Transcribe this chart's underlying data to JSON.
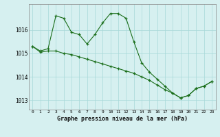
{
  "line1_x": [
    0,
    1,
    2,
    3,
    4,
    5,
    6,
    7,
    8,
    9,
    10,
    11,
    12,
    13,
    14,
    15,
    16,
    17,
    18,
    19,
    20,
    21,
    22,
    23
  ],
  "line1_y": [
    1015.3,
    1015.1,
    1015.2,
    1016.6,
    1016.5,
    1015.9,
    1015.8,
    1015.4,
    1015.8,
    1016.3,
    1016.7,
    1016.7,
    1016.5,
    1015.5,
    1014.6,
    1014.2,
    1013.9,
    1013.6,
    1013.3,
    1013.1,
    1013.2,
    1013.5,
    1013.6,
    1013.8
  ],
  "line2_x": [
    0,
    1,
    2,
    3,
    4,
    5,
    6,
    7,
    8,
    9,
    10,
    11,
    12,
    13,
    14,
    15,
    16,
    17,
    18,
    19,
    20,
    21,
    22,
    23
  ],
  "line2_y": [
    1015.3,
    1015.05,
    1015.1,
    1015.1,
    1015.0,
    1014.95,
    1014.85,
    1014.75,
    1014.65,
    1014.55,
    1014.45,
    1014.35,
    1014.25,
    1014.15,
    1014.0,
    1013.85,
    1013.65,
    1013.45,
    1013.3,
    1013.1,
    1013.2,
    1013.5,
    1013.6,
    1013.8
  ],
  "title": "Graphe pression niveau de la mer (hPa)",
  "ylabel_ticks": [
    1013,
    1014,
    1015,
    1016
  ],
  "xlabel_ticks": [
    0,
    1,
    2,
    3,
    4,
    5,
    6,
    7,
    8,
    9,
    10,
    11,
    12,
    13,
    14,
    15,
    16,
    17,
    18,
    19,
    20,
    21,
    22,
    23
  ],
  "line_color": "#1a6e1a",
  "bg_color": "#d6f0f0",
  "grid_color": "#a8d8d8",
  "ylim": [
    1012.6,
    1017.1
  ],
  "xlim": [
    -0.5,
    23.5
  ]
}
